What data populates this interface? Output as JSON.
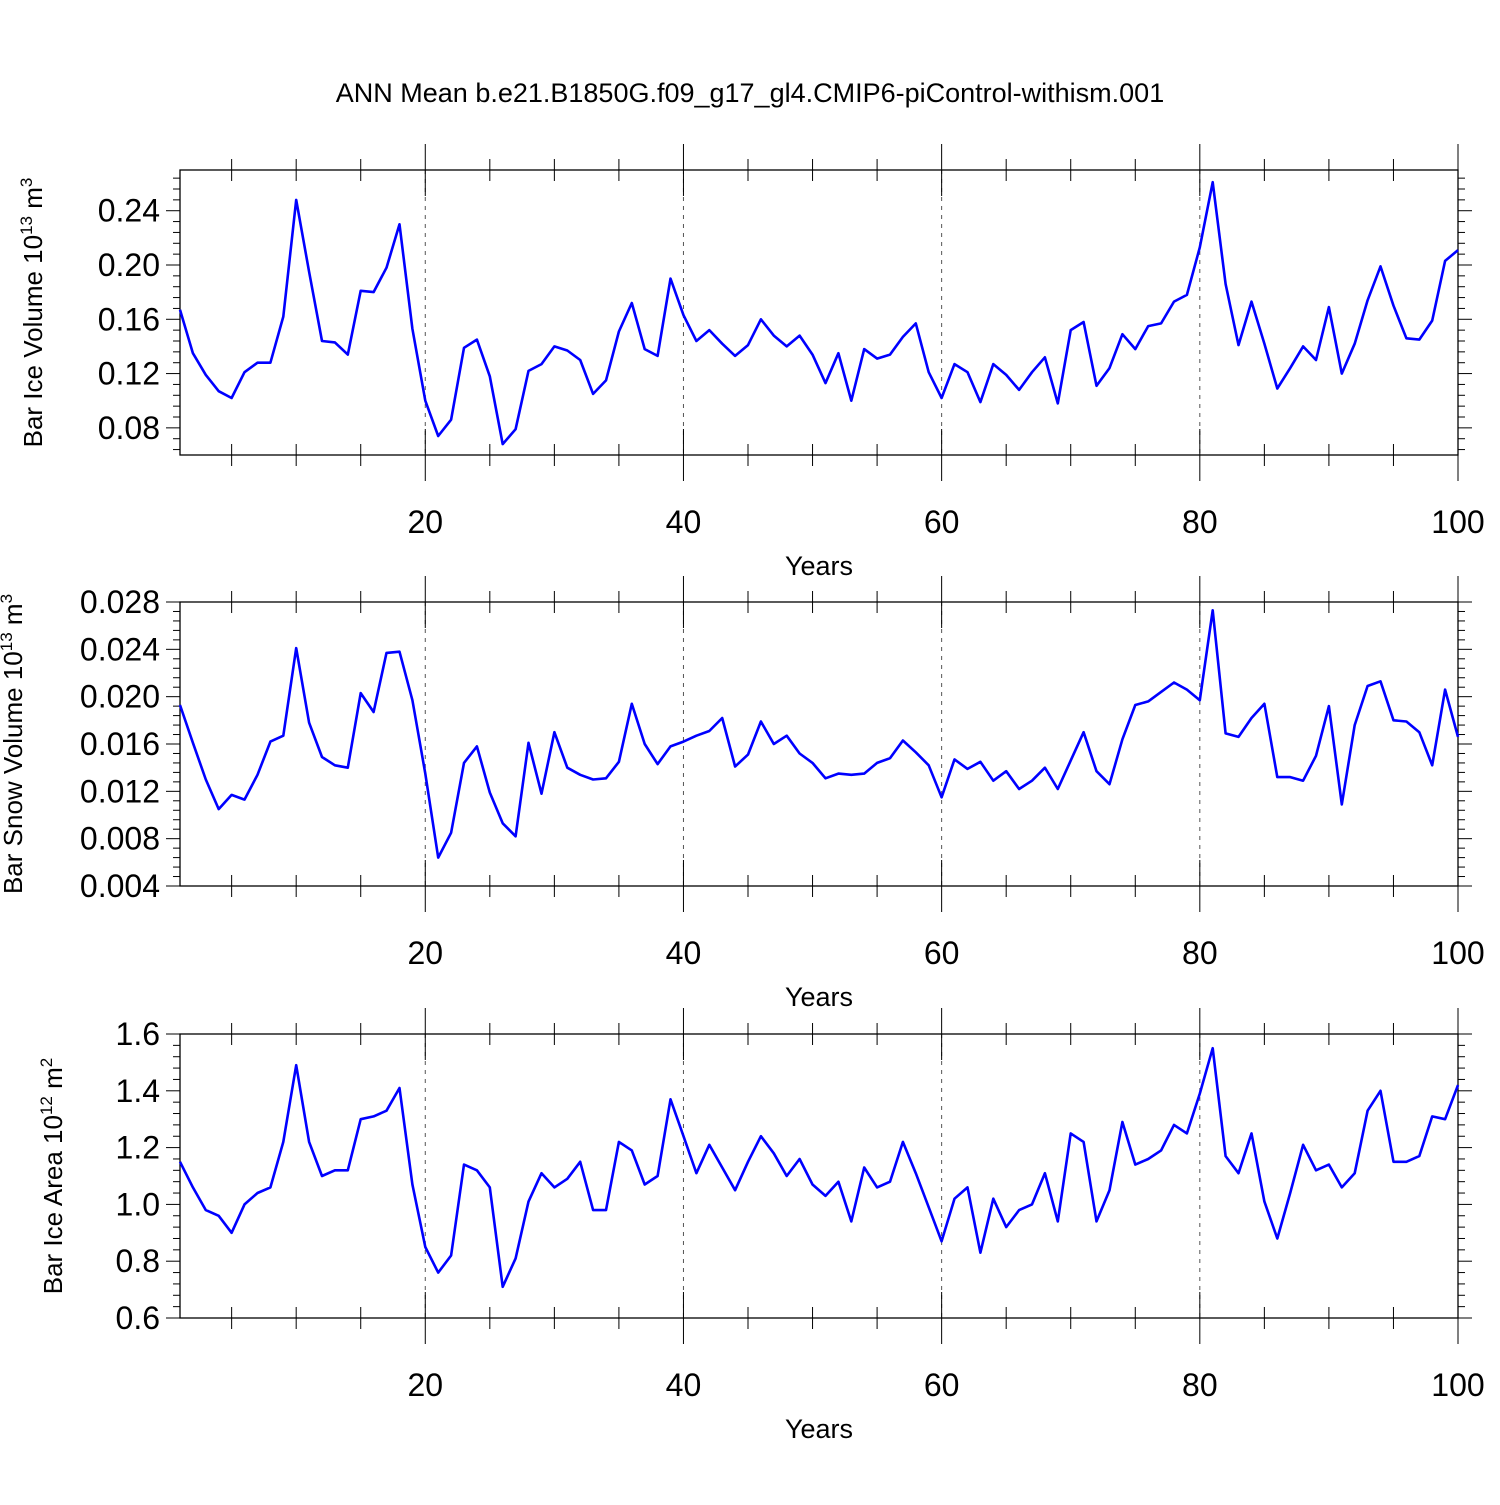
{
  "figure": {
    "title": "ANN Mean b.e21.B1850G.f09_g17_gl4.CMIP6-piControl-withism.001"
  },
  "chart_data": [
    {
      "type": "line",
      "title": "ANN Mean b.e21.B1850G.f09_g17_gl4.CMIP6-piControl-withism.001",
      "xlabel": "Years",
      "ylabel_base": "Bar Ice Volume 10",
      "ylabel_exp": "13",
      "ylabel_unit": " m",
      "ylabel_unit_exp": "3",
      "xlim": [
        1,
        100
      ],
      "ylim": [
        0.06,
        0.27
      ],
      "xticks": [
        20,
        40,
        60,
        80,
        100
      ],
      "yticks": [
        "0.08",
        "0.12",
        "0.16",
        "0.20",
        "0.24"
      ],
      "grid": "x dashed at 20, 40, 60, 80",
      "line_color": "#0000ff",
      "series": [
        {
          "x": [
            1,
            2,
            3,
            4,
            5,
            6,
            7,
            8,
            9,
            10,
            11,
            12,
            13,
            14,
            15,
            16,
            17,
            18,
            19,
            20,
            21,
            22,
            23,
            24,
            25,
            26,
            27,
            28,
            29,
            30,
            31,
            32,
            33,
            34,
            35,
            36,
            37,
            38,
            39,
            40,
            41,
            42,
            43,
            44,
            45,
            46,
            47,
            48,
            49,
            50,
            51,
            52,
            53,
            54,
            55,
            56,
            57,
            58,
            59,
            60,
            61,
            62,
            63,
            64,
            65,
            66,
            67,
            68,
            69,
            70,
            71,
            72,
            73,
            74,
            75,
            76,
            77,
            78,
            79,
            80,
            81,
            82,
            83,
            84,
            85,
            86,
            87,
            88,
            89,
            90,
            91,
            92,
            93,
            94,
            95,
            96,
            97,
            98,
            99,
            100
          ],
          "values": [
            0.167,
            0.135,
            0.119,
            0.107,
            0.102,
            0.121,
            0.128,
            0.128,
            0.162,
            0.248,
            0.195,
            0.144,
            0.143,
            0.134,
            0.181,
            0.18,
            0.198,
            0.23,
            0.153,
            0.1,
            0.074,
            0.086,
            0.139,
            0.145,
            0.118,
            0.068,
            0.079,
            0.122,
            0.127,
            0.14,
            0.137,
            0.13,
            0.105,
            0.115,
            0.151,
            0.172,
            0.138,
            0.133,
            0.19,
            0.163,
            0.144,
            0.152,
            0.142,
            0.133,
            0.141,
            0.16,
            0.148,
            0.14,
            0.148,
            0.134,
            0.113,
            0.135,
            0.1,
            0.138,
            0.131,
            0.134,
            0.147,
            0.157,
            0.121,
            0.102,
            0.127,
            0.121,
            0.099,
            0.127,
            0.119,
            0.108,
            0.121,
            0.132,
            0.098,
            0.152,
            0.158,
            0.111,
            0.124,
            0.149,
            0.138,
            0.155,
            0.157,
            0.173,
            0.178,
            0.213,
            0.261,
            0.186,
            0.141,
            0.173,
            0.142,
            0.109,
            0.124,
            0.14,
            0.13,
            0.169,
            0.12,
            0.142,
            0.174,
            0.199,
            0.17,
            0.146,
            0.145,
            0.159,
            0.203,
            0.211
          ]
        }
      ]
    },
    {
      "type": "line",
      "xlabel": "Years",
      "ylabel_base": "Bar Snow Volume 10",
      "ylabel_exp": "13",
      "ylabel_unit": " m",
      "ylabel_unit_exp": "3",
      "xlim": [
        1,
        100
      ],
      "ylim": [
        0.004,
        0.028
      ],
      "xticks": [
        20,
        40,
        60,
        80,
        100
      ],
      "yticks": [
        "0.004",
        "0.008",
        "0.012",
        "0.016",
        "0.020",
        "0.024",
        "0.028"
      ],
      "grid": "x dashed at 20, 40, 60, 80",
      "line_color": "#0000ff",
      "series": [
        {
          "x": [
            1,
            2,
            3,
            4,
            5,
            6,
            7,
            8,
            9,
            10,
            11,
            12,
            13,
            14,
            15,
            16,
            17,
            18,
            19,
            20,
            21,
            22,
            23,
            24,
            25,
            26,
            27,
            28,
            29,
            30,
            31,
            32,
            33,
            34,
            35,
            36,
            37,
            38,
            39,
            40,
            41,
            42,
            43,
            44,
            45,
            46,
            47,
            48,
            49,
            50,
            51,
            52,
            53,
            54,
            55,
            56,
            57,
            58,
            59,
            60,
            61,
            62,
            63,
            64,
            65,
            66,
            67,
            68,
            69,
            70,
            71,
            72,
            73,
            74,
            75,
            76,
            77,
            78,
            79,
            80,
            81,
            82,
            83,
            84,
            85,
            86,
            87,
            88,
            89,
            90,
            91,
            92,
            93,
            94,
            95,
            96,
            97,
            98,
            99,
            100
          ],
          "values": [
            0.0193,
            0.0161,
            0.013,
            0.0105,
            0.0117,
            0.0113,
            0.0134,
            0.0162,
            0.0167,
            0.0241,
            0.0178,
            0.0149,
            0.0142,
            0.014,
            0.0203,
            0.0187,
            0.0237,
            0.0238,
            0.0197,
            0.0135,
            0.0064,
            0.0085,
            0.0144,
            0.0158,
            0.0119,
            0.0093,
            0.0082,
            0.0161,
            0.0118,
            0.017,
            0.014,
            0.0134,
            0.013,
            0.0131,
            0.0145,
            0.0194,
            0.016,
            0.0143,
            0.0158,
            0.0162,
            0.0167,
            0.0171,
            0.0182,
            0.0141,
            0.0151,
            0.0179,
            0.016,
            0.0167,
            0.0152,
            0.0144,
            0.0131,
            0.0135,
            0.0134,
            0.0135,
            0.0144,
            0.0148,
            0.0163,
            0.0153,
            0.0142,
            0.0115,
            0.0147,
            0.0139,
            0.0145,
            0.0129,
            0.0137,
            0.0122,
            0.0129,
            0.014,
            0.0122,
            0.0146,
            0.017,
            0.0137,
            0.0126,
            0.0164,
            0.0193,
            0.0196,
            0.0204,
            0.0212,
            0.0206,
            0.0197,
            0.0273,
            0.0169,
            0.0166,
            0.0182,
            0.0194,
            0.0132,
            0.0132,
            0.0129,
            0.015,
            0.0192,
            0.0109,
            0.0176,
            0.0209,
            0.0213,
            0.018,
            0.0179,
            0.017,
            0.0142,
            0.0206,
            0.0166
          ]
        }
      ]
    },
    {
      "type": "line",
      "xlabel": "Years",
      "ylabel_base": "Bar Ice Area 10",
      "ylabel_exp": "12",
      "ylabel_unit": " m",
      "ylabel_unit_exp": "2",
      "xlim": [
        1,
        100
      ],
      "ylim": [
        0.6,
        1.6
      ],
      "xticks": [
        20,
        40,
        60,
        80,
        100
      ],
      "yticks": [
        "0.6",
        "0.8",
        "1.0",
        "1.2",
        "1.4",
        "1.6"
      ],
      "grid": "x dashed at 20, 40, 60, 80",
      "line_color": "#0000ff",
      "series": [
        {
          "x": [
            1,
            2,
            3,
            4,
            5,
            6,
            7,
            8,
            9,
            10,
            11,
            12,
            13,
            14,
            15,
            16,
            17,
            18,
            19,
            20,
            21,
            22,
            23,
            24,
            25,
            26,
            27,
            28,
            29,
            30,
            31,
            32,
            33,
            34,
            35,
            36,
            37,
            38,
            39,
            40,
            41,
            42,
            43,
            44,
            45,
            46,
            47,
            48,
            49,
            50,
            51,
            52,
            53,
            54,
            55,
            56,
            57,
            58,
            59,
            60,
            61,
            62,
            63,
            64,
            65,
            66,
            67,
            68,
            69,
            70,
            71,
            72,
            73,
            74,
            75,
            76,
            77,
            78,
            79,
            80,
            81,
            82,
            83,
            84,
            85,
            86,
            87,
            88,
            89,
            90,
            91,
            92,
            93,
            94,
            95,
            96,
            97,
            98,
            99,
            100
          ],
          "values": [
            1.15,
            1.06,
            0.98,
            0.96,
            0.9,
            1.0,
            1.04,
            1.06,
            1.22,
            1.49,
            1.22,
            1.1,
            1.12,
            1.12,
            1.3,
            1.31,
            1.33,
            1.41,
            1.07,
            0.85,
            0.76,
            0.82,
            1.14,
            1.12,
            1.06,
            0.71,
            0.81,
            1.01,
            1.11,
            1.06,
            1.09,
            1.15,
            0.98,
            0.98,
            1.22,
            1.19,
            1.07,
            1.1,
            1.37,
            1.24,
            1.11,
            1.21,
            1.13,
            1.05,
            1.15,
            1.24,
            1.18,
            1.1,
            1.16,
            1.07,
            1.03,
            1.08,
            0.94,
            1.13,
            1.06,
            1.08,
            1.22,
            1.11,
            0.99,
            0.87,
            1.02,
            1.06,
            0.83,
            1.02,
            0.92,
            0.98,
            1.0,
            1.11,
            0.94,
            1.25,
            1.22,
            0.94,
            1.05,
            1.29,
            1.14,
            1.16,
            1.19,
            1.28,
            1.25,
            1.39,
            1.55,
            1.17,
            1.11,
            1.25,
            1.01,
            0.88,
            1.04,
            1.21,
            1.12,
            1.14,
            1.06,
            1.11,
            1.33,
            1.4,
            1.15,
            1.15,
            1.17,
            1.31,
            1.3,
            1.42
          ]
        }
      ]
    }
  ]
}
